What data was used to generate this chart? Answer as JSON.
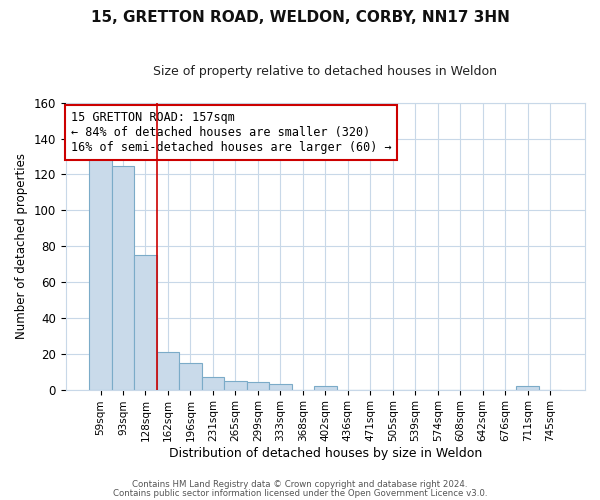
{
  "title": "15, GRETTON ROAD, WELDON, CORBY, NN17 3HN",
  "subtitle": "Size of property relative to detached houses in Weldon",
  "xlabel": "Distribution of detached houses by size in Weldon",
  "ylabel": "Number of detached properties",
  "bar_labels": [
    "59sqm",
    "93sqm",
    "128sqm",
    "162sqm",
    "196sqm",
    "231sqm",
    "265sqm",
    "299sqm",
    "333sqm",
    "368sqm",
    "402sqm",
    "436sqm",
    "471sqm",
    "505sqm",
    "539sqm",
    "574sqm",
    "608sqm",
    "642sqm",
    "676sqm",
    "711sqm",
    "745sqm"
  ],
  "bar_heights": [
    132,
    125,
    75,
    21,
    15,
    7,
    5,
    4,
    3,
    0,
    2,
    0,
    0,
    0,
    0,
    0,
    0,
    0,
    0,
    2,
    0
  ],
  "bar_color": "#c9daea",
  "bar_edge_color": "#7babc8",
  "ylim": [
    0,
    160
  ],
  "yticks": [
    0,
    20,
    40,
    60,
    80,
    100,
    120,
    140,
    160
  ],
  "red_line_index": 3,
  "annotation_text": "15 GRETTON ROAD: 157sqm\n← 84% of detached houses are smaller (320)\n16% of semi-detached houses are larger (60) →",
  "annotation_box_color": "#ffffff",
  "annotation_border_color": "#cc0000",
  "footer_line1": "Contains HM Land Registry data © Crown copyright and database right 2024.",
  "footer_line2": "Contains public sector information licensed under the Open Government Licence v3.0.",
  "bg_color": "#ffffff",
  "grid_color": "#c8d8e8",
  "title_fontsize": 11,
  "subtitle_fontsize": 9
}
